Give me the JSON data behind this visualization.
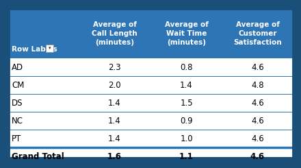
{
  "header_bg": "#2E75B6",
  "header_text_color": "#FFFFFF",
  "body_bg": "#FFFFFF",
  "divider_color": "#2E75B6",
  "border_color": "#1A4F7A",
  "col0_header_line1": "Row Labels",
  "col1_header": "Average of\nCall Length\n(minutes)",
  "col2_header": "Average of\nWait Time\n(minutes)",
  "col3_header": "Average of\nCustomer\nSatisfaction",
  "rows": [
    [
      "AD",
      "2.3",
      "0.8",
      "4.6"
    ],
    [
      "CM",
      "2.0",
      "1.4",
      "4.8"
    ],
    [
      "DS",
      "1.4",
      "1.5",
      "4.6"
    ],
    [
      "NC",
      "1.4",
      "0.9",
      "4.6"
    ],
    [
      "PT",
      "1.4",
      "1.0",
      "4.6"
    ]
  ],
  "grand_total": [
    "Grand Total",
    "1.6",
    "1.1",
    "4.6"
  ],
  "font_size_header": 7.5,
  "font_size_body": 8.5,
  "font_size_grand": 8.5
}
